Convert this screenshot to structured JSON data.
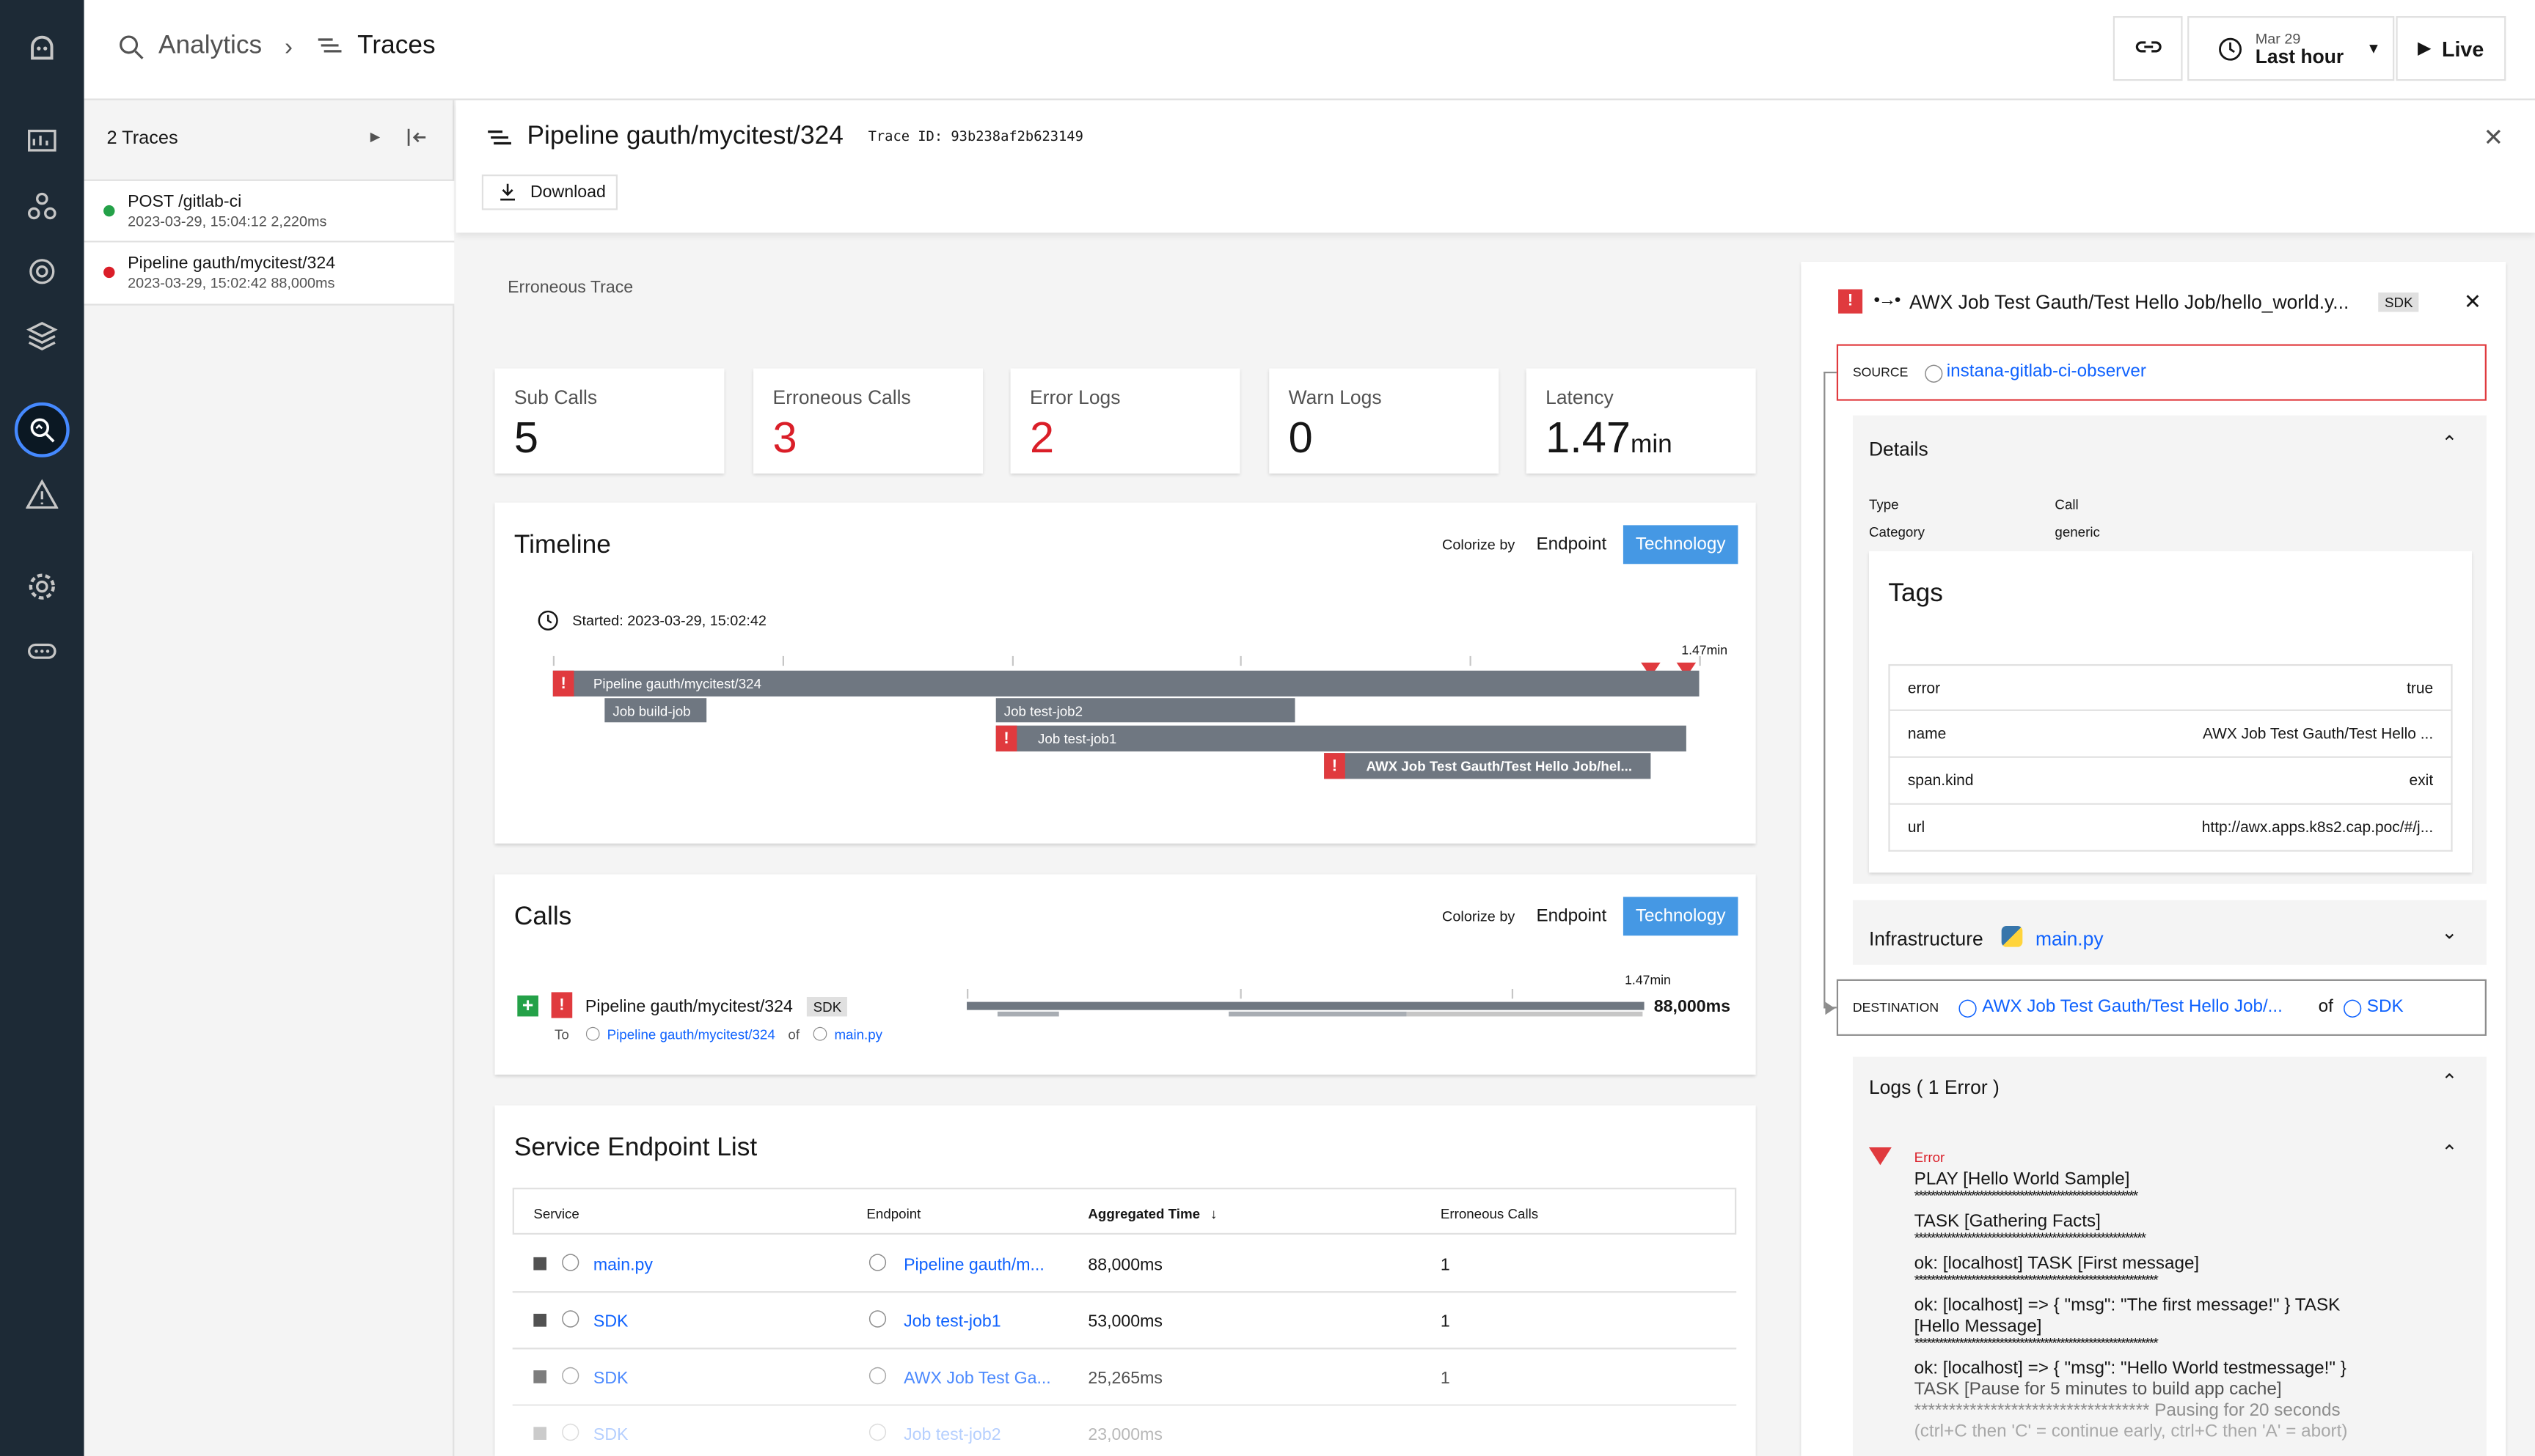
{
  "breadcrumb": {
    "root": "Analytics",
    "current": "Traces"
  },
  "toolbar": {
    "date": "Mar 29",
    "range": "Last hour",
    "live": "Live"
  },
  "traces": {
    "count_label": "2 Traces",
    "items": [
      {
        "title": "POST /gitlab-ci",
        "sub": "2023-03-29, 15:04:12  2,220ms",
        "status_color": "#24a148"
      },
      {
        "title": "Pipeline gauth/mycitest/324",
        "sub": "2023-03-29, 15:02:42  88,000ms",
        "status_color": "#da1e28"
      }
    ]
  },
  "header": {
    "title": "Pipeline gauth/mycitest/324",
    "trace_id": "Trace ID: 93b238af2b623149",
    "download": "Download"
  },
  "erroneous_label": "Erroneous Trace",
  "stats": [
    {
      "label": "Sub Calls",
      "value": "5",
      "unit": "",
      "error": false
    },
    {
      "label": "Erroneous Calls",
      "value": "3",
      "unit": "",
      "error": true
    },
    {
      "label": "Error Logs",
      "value": "2",
      "unit": "",
      "error": true
    },
    {
      "label": "Warn Logs",
      "value": "0",
      "unit": "",
      "error": false
    },
    {
      "label": "Latency",
      "value": "1.47",
      "unit": "min",
      "error": false
    }
  ],
  "timeline": {
    "title": "Timeline",
    "colorize_label": "Colorize by",
    "endpoint": "Endpoint",
    "technology": "Technology",
    "started": "Started: 2023-03-29, 15:02:42",
    "end_label": "1.47min",
    "bars": [
      {
        "label": "Pipeline gauth/mycitest/324",
        "error": true
      },
      {
        "label": "Job build-job",
        "error": false
      },
      {
        "label": "Job test-job2",
        "error": false
      },
      {
        "label": "Job test-job1",
        "error": true
      },
      {
        "label": "AWX Job Test Gauth/Test Hello Job/hel...",
        "error": true
      }
    ]
  },
  "calls": {
    "title": "Calls",
    "colorize_label": "Colorize by",
    "endpoint": "Endpoint",
    "technology": "Technology",
    "name": "Pipeline gauth/mycitest/324",
    "badge": "SDK",
    "to": "To",
    "to_link": "Pipeline gauth/mycitest/324",
    "of": "of",
    "service_link": "main.py",
    "end_label": "1.47min",
    "duration": "88,000ms"
  },
  "sel": {
    "title": "Service Endpoint List",
    "columns": [
      "Service",
      "Endpoint",
      "Aggregated Time",
      "Erroneous Calls"
    ],
    "rows": [
      {
        "service": "main.py",
        "endpoint": "Pipeline gauth/m...",
        "time": "88,000ms",
        "errors": "1"
      },
      {
        "service": "SDK",
        "endpoint": "Job test-job1",
        "time": "53,000ms",
        "errors": "1"
      },
      {
        "service": "SDK",
        "endpoint": "AWX Job Test Ga...",
        "time": "25,265ms",
        "errors": "1"
      },
      {
        "service": "SDK",
        "endpoint": "Job test-job2",
        "time": "23,000ms",
        "errors": ""
      }
    ]
  },
  "detail": {
    "title": "AWX Job Test Gauth/Test Hello Job/hello_world.y...",
    "badge": "SDK",
    "source_label": "SOURCE",
    "source_value": "instana-gitlab-ci-observer",
    "details_title": "Details",
    "type_key": "Type",
    "type_val": "Call",
    "category_key": "Category",
    "category_val": "generic",
    "tags_title": "Tags",
    "tags": [
      {
        "k": "error",
        "v": "true"
      },
      {
        "k": "name",
        "v": "AWX Job Test Gauth/Test Hello ..."
      },
      {
        "k": "span.kind",
        "v": "exit"
      },
      {
        "k": "url",
        "v": "http://awx.apps.k8s2.cap.poc/#/j..."
      }
    ],
    "infra_title": "Infrastructure",
    "infra_value": "main.py",
    "dest_label": "DESTINATION",
    "dest_value": "AWX Job Test Gauth/Test Hello Job/...",
    "dest_of": "of",
    "dest_service": "SDK",
    "logs_title": "Logs ( 1 Error )",
    "log_level": "Error",
    "log_lines": [
      "PLAY [Hello World Sample]",
      "*******************************************************",
      "TASK [Gathering Facts]",
      "*********************************************************",
      "ok: [localhost] TASK [First message]",
      "************************************************************",
      "ok: [localhost] => { \"msg\": \"The first message!\" } TASK",
      "[Hello Message]",
      "************************************************************",
      "ok: [localhost] => { \"msg\": \"Hello World testmessage!\" }",
      "TASK [Pause for 5 minutes to build app cache]",
      "********************************** Pausing for 20 seconds",
      "(ctrl+C then 'C' = continue early, ctrl+C then 'A' = abort)"
    ]
  }
}
